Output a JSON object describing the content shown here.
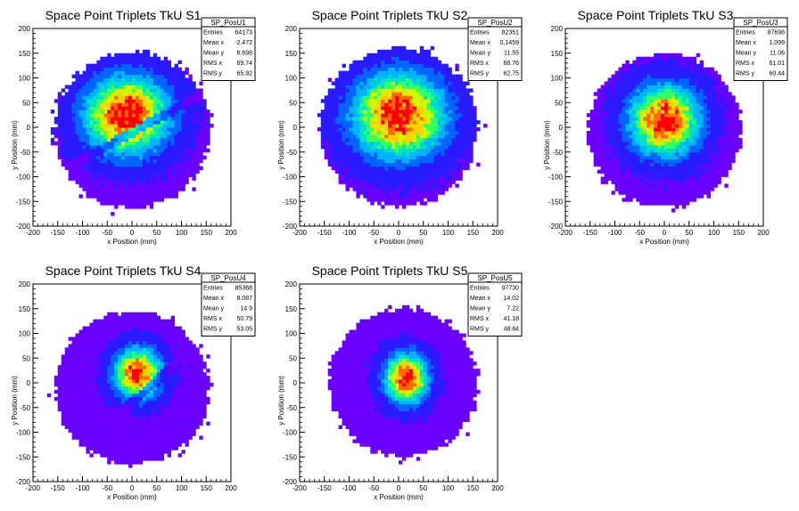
{
  "chart_data": [
    {
      "type": "heatmap",
      "title": "Space Point Triplets TkU S1",
      "xlabel": "x Position (mm)",
      "ylabel": "y Position (mm)",
      "xlim": [
        -200,
        200
      ],
      "ylim": [
        -200,
        200
      ],
      "xticks": [
        -200,
        -150,
        -100,
        -50,
        0,
        50,
        100,
        150,
        200
      ],
      "yticks": [
        -200,
        -150,
        -100,
        -50,
        0,
        50,
        100,
        150,
        200
      ],
      "stats": {
        "name": "SP_PosU1",
        "rows": [
          {
            "label": "Entries",
            "value": "64173"
          },
          {
            "label": "Mean x",
            "value": "-2.472"
          },
          {
            "label": "Mean y",
            "value": "6.698"
          },
          {
            "label": "RMS x",
            "value": "69.74"
          },
          {
            "label": "RMS y",
            "value": "65.92"
          }
        ]
      },
      "distribution": {
        "disk_center": [
          0,
          -5
        ],
        "disk_radius": 158,
        "peak_center": [
          -10,
          25
        ],
        "peak_sigma": [
          55,
          50
        ],
        "gap_line": {
          "slope": 0.55,
          "intercept": -10
        }
      }
    },
    {
      "type": "heatmap",
      "title": "Space Point Triplets TkU S2",
      "xlabel": "x Position (mm)",
      "ylabel": "y Position (mm)",
      "xlim": [
        -200,
        200
      ],
      "ylim": [
        -200,
        200
      ],
      "xticks": [
        -200,
        -150,
        -100,
        -50,
        0,
        50,
        100,
        150,
        200
      ],
      "yticks": [
        -200,
        -150,
        -100,
        -50,
        0,
        50,
        100,
        150,
        200
      ],
      "stats": {
        "name": "SP_PosU2",
        "rows": [
          {
            "label": "Entries",
            "value": "82351"
          },
          {
            "label": "Mean x",
            "value": "0.1459"
          },
          {
            "label": "Mean y",
            "value": "11.55"
          },
          {
            "label": "RMS x",
            "value": "66.76"
          },
          {
            "label": "RMS y",
            "value": "62.75"
          }
        ]
      },
      "distribution": {
        "disk_center": [
          0,
          0
        ],
        "disk_radius": 160,
        "peak_center": [
          0,
          25
        ],
        "peak_sigma": [
          60,
          55
        ]
      }
    },
    {
      "type": "heatmap",
      "title": "Space Point Triplets TkU S3",
      "xlabel": "x Position (mm)",
      "ylabel": "y Position (mm)",
      "xlim": [
        -200,
        200
      ],
      "ylim": [
        -200,
        200
      ],
      "xticks": [
        -200,
        -150,
        -100,
        -50,
        0,
        50,
        100,
        150,
        200
      ],
      "yticks": [
        -200,
        -150,
        -100,
        -50,
        0,
        50,
        100,
        150,
        200
      ],
      "stats": {
        "name": "SP_PosU3",
        "rows": [
          {
            "label": "Entries",
            "value": "87698"
          },
          {
            "label": "Mean x",
            "value": "1.099"
          },
          {
            "label": "Mean y",
            "value": "11.06"
          },
          {
            "label": "RMS x",
            "value": "61.01"
          },
          {
            "label": "RMS y",
            "value": "60.44"
          }
        ]
      },
      "distribution": {
        "disk_center": [
          0,
          -5
        ],
        "disk_radius": 155,
        "peak_center": [
          0,
          15
        ],
        "peak_sigma": [
          45,
          45
        ]
      }
    },
    {
      "type": "heatmap",
      "title": "Space Point Triplets TkU S4",
      "xlabel": "x Position (mm)",
      "ylabel": "y Position (mm)",
      "xlim": [
        -200,
        200
      ],
      "ylim": [
        -200,
        200
      ],
      "xticks": [
        -200,
        -150,
        -100,
        -50,
        0,
        50,
        100,
        150,
        200
      ],
      "yticks": [
        -200,
        -150,
        -100,
        -50,
        0,
        50,
        100,
        150,
        200
      ],
      "stats": {
        "name": "SP_PosU4",
        "rows": [
          {
            "label": "Entries",
            "value": "85368"
          },
          {
            "label": "Mean x",
            "value": "8.087"
          },
          {
            "label": "Mean y",
            "value": "14.9"
          },
          {
            "label": "RMS x",
            "value": "50.79"
          },
          {
            "label": "RMS y",
            "value": "53.05"
          }
        ]
      },
      "distribution": {
        "disk_center": [
          0,
          -10
        ],
        "disk_radius": 155,
        "peak_center": [
          12,
          20
        ],
        "peak_sigma": [
          30,
          32
        ],
        "gap_line": {
          "slope": 0.9,
          "intercept": -40
        }
      }
    },
    {
      "type": "heatmap",
      "title": "Space Point Triplets TkU S5",
      "xlabel": "x Position (mm)",
      "ylabel": "y Position (mm)",
      "xlim": [
        -200,
        200
      ],
      "ylim": [
        -200,
        200
      ],
      "xticks": [
        -200,
        -150,
        -100,
        -50,
        0,
        50,
        100,
        150,
        200
      ],
      "yticks": [
        -200,
        -150,
        -100,
        -50,
        0,
        50,
        100,
        150,
        200
      ],
      "stats": {
        "name": "SP_PosU5",
        "rows": [
          {
            "label": "Entries",
            "value": "97730"
          },
          {
            "label": "Mean x",
            "value": "14.02"
          },
          {
            "label": "Mean y",
            "value": "7.22"
          },
          {
            "label": "RMS x",
            "value": "41.18"
          },
          {
            "label": "RMS y",
            "value": "48.84"
          }
        ]
      },
      "distribution": {
        "disk_center": [
          10,
          0
        ],
        "disk_radius": 150,
        "peak_center": [
          15,
          10
        ],
        "peak_sigma": [
          28,
          32
        ]
      }
    }
  ],
  "colors": {
    "palette": [
      "#6a00ff",
      "#2a1bff",
      "#0066ff",
      "#00b4ff",
      "#00e0c8",
      "#33ff66",
      "#c8ff00",
      "#ffd000",
      "#ff6a00",
      "#ff0000"
    ],
    "axis": "#000000",
    "frame": "#000000",
    "background": "#ffffff"
  }
}
